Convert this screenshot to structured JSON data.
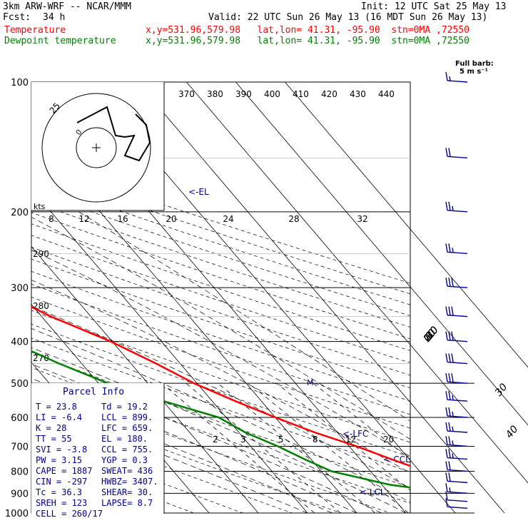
{
  "header": {
    "model": "3km ARW-WRF -- NCAR/MMM",
    "init": "Init: 12 UTC Sat 25 May 13",
    "fcst_label": "Fcst:",
    "fcst_value": "34 h",
    "valid": "Valid: 22 UTC Sun 26 May 13 (16 MDT Sun 26 May 13)",
    "temp_label": "Temperature",
    "temp_info": "x,y=531.96,579.98   lat,lon= 41.31, -95.90  stn=0MA ,72550",
    "dew_label": "Dewpoint temperature",
    "dew_info": "x,y=531.96,579.98   lat,lon= 41.31, -95.90  stn=0MA ,72550"
  },
  "barb_legend": {
    "title": "Full barb:",
    "value": "5 m s⁻¹"
  },
  "hodograph": {
    "units": "kts",
    "speed_ticks": [
      "8",
      "12",
      "16",
      "20",
      "24",
      "28",
      "32"
    ],
    "ring_label": "25"
  },
  "theta_e_labels": [
    "370",
    "380",
    "390",
    "400",
    "410",
    "420",
    "430",
    "440"
  ],
  "theta_labels": [
    "290",
    "280",
    "270"
  ],
  "mixing_ratio_labels": [
    "2",
    "3",
    "5",
    "8",
    "12",
    "20"
  ],
  "markers": {
    "el": "<-EL",
    "lfc": "<-LFC",
    "ccl": "<-CCL",
    "lcl": "< LCL",
    "m": "M"
  },
  "parcel_info": {
    "title": "Parcel Info",
    "rows": [
      {
        "a": "T  =   23.8",
        "b": "Td =  19.2"
      },
      {
        "a": "LI = -6.4",
        "b": "LCL =  899."
      },
      {
        "a": "K  =   28",
        "b": "LFC =  659."
      },
      {
        "a": "TT =   55",
        "b": "EL  =  180."
      },
      {
        "a": "SVI =  -3.8",
        "b": "CCL =  755."
      },
      {
        "a": "PW =  3.15",
        "b": "YGP =   0.3"
      },
      {
        "a": "CAPE =  1887",
        "b": "SWEAT=  436"
      },
      {
        "a": "CIN =  -297",
        "b": "HWBZ= 3407."
      },
      {
        "a": "Tc =  36.3",
        "b": "SHEAR=  30."
      },
      {
        "a": "SREH =  123",
        "b": "LAPSE=  8.7"
      },
      {
        "a": "CELL = 260/17",
        "b": ""
      }
    ]
  },
  "colors": {
    "temperature": "#ff0000",
    "dewpoint": "#008000",
    "isotherm": "#000000",
    "label_blue": "#00008b",
    "barb": "#00008b"
  },
  "chart_data": {
    "type": "line",
    "title": "",
    "xlabel": "",
    "ylabel": "",
    "y_scale": "log-pressure",
    "ylim": [
      1000,
      100
    ],
    "y_ticks": [
      100,
      200,
      300,
      400,
      500,
      600,
      700,
      800,
      900,
      1000
    ],
    "isotherm_ticks": [
      -80,
      -70,
      -60,
      -50,
      -40,
      -30,
      -20,
      -10,
      0,
      10,
      20,
      30,
      40
    ],
    "series": [
      {
        "name": "Temperature",
        "color": "#ff0000",
        "points": [
          [
            970,
            24.4
          ],
          [
            940,
            21.0
          ],
          [
            905,
            19.6
          ],
          [
            880,
            22.3
          ],
          [
            860,
            24.3
          ],
          [
            800,
            21.1
          ],
          [
            750,
            16.3
          ],
          [
            700,
            11.5
          ],
          [
            650,
            5.4
          ],
          [
            600,
            0.0
          ],
          [
            550,
            -5.3
          ],
          [
            500,
            -10.6
          ],
          [
            450,
            -14.9
          ],
          [
            400,
            -20.3
          ],
          [
            350,
            -28.1
          ],
          [
            300,
            -35.2
          ],
          [
            250,
            -45.9
          ],
          [
            220,
            -52.7
          ],
          [
            200,
            -58.0
          ],
          [
            180,
            -60.2
          ],
          [
            170,
            -61.9
          ],
          [
            150,
            -63.1
          ],
          [
            130,
            -63.6
          ],
          [
            115,
            -63.4
          ],
          [
            100,
            -63.8
          ]
        ]
      },
      {
        "name": "Dewpoint temperature",
        "color": "#008000",
        "points": [
          [
            970,
            19.9
          ],
          [
            940,
            19.4
          ],
          [
            905,
            19.2
          ],
          [
            880,
            17.4
          ],
          [
            860,
            11.6
          ],
          [
            800,
            2.1
          ],
          [
            750,
            -1.3
          ],
          [
            700,
            -4.5
          ],
          [
            650,
            -8.7
          ],
          [
            600,
            -11.5
          ],
          [
            550,
            -19.9
          ],
          [
            500,
            -28.1
          ],
          [
            450,
            -34.6
          ],
          [
            400,
            -40.8
          ],
          [
            350,
            -48.8
          ],
          [
            300,
            -57.1
          ],
          [
            250,
            -67.7
          ],
          [
            200,
            -75.7
          ],
          [
            180,
            -77.5
          ],
          [
            150,
            -84.2
          ],
          [
            130,
            -88.1
          ],
          [
            115,
            -92.8
          ],
          [
            100,
            -96.2
          ]
        ]
      }
    ],
    "wind_barbs": [
      {
        "p": 975,
        "speed_kt": 8
      },
      {
        "p": 940,
        "speed_kt": 10
      },
      {
        "p": 900,
        "speed_kt": 15
      },
      {
        "p": 850,
        "speed_kt": 20
      },
      {
        "p": 800,
        "speed_kt": 20
      },
      {
        "p": 750,
        "speed_kt": 25
      },
      {
        "p": 700,
        "speed_kt": 25
      },
      {
        "p": 650,
        "speed_kt": 25
      },
      {
        "p": 600,
        "speed_kt": 25
      },
      {
        "p": 550,
        "speed_kt": 25
      },
      {
        "p": 500,
        "speed_kt": 30
      },
      {
        "p": 450,
        "speed_kt": 30
      },
      {
        "p": 400,
        "speed_kt": 30
      },
      {
        "p": 350,
        "speed_kt": 30
      },
      {
        "p": 300,
        "speed_kt": 30
      },
      {
        "p": 250,
        "speed_kt": 25
      },
      {
        "p": 200,
        "speed_kt": 25
      },
      {
        "p": 150,
        "speed_kt": 20
      },
      {
        "p": 100,
        "speed_kt": 15
      }
    ]
  }
}
